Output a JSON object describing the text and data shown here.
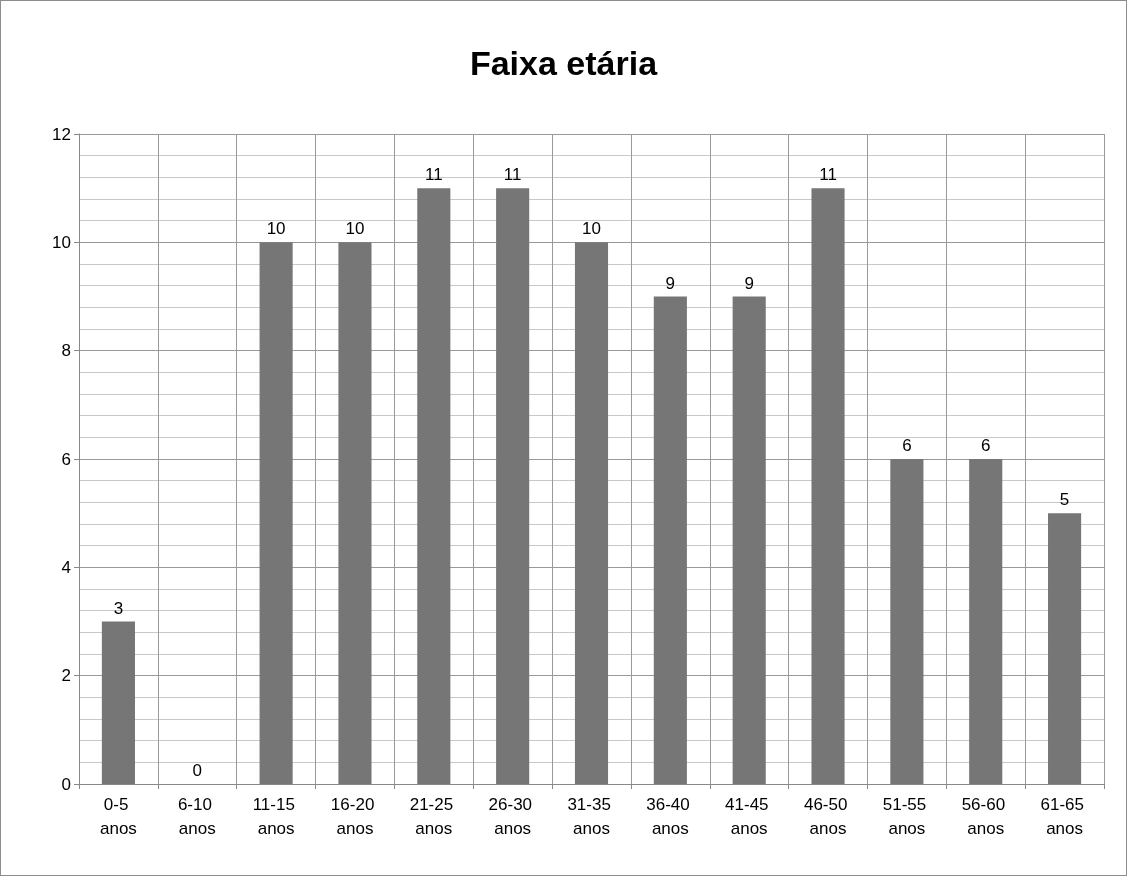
{
  "chart_data": {
    "type": "bar",
    "title": "Faixa etária",
    "categories": [
      "0-5 anos",
      "6-10 anos",
      "11-15 anos",
      "16-20 anos",
      "21-25 anos",
      "26-30 anos",
      "31-35 anos",
      "36-40 anos",
      "41-45 anos",
      "46-50 anos",
      "51-55 anos",
      "56-60 anos",
      "61-65 anos"
    ],
    "values": [
      3,
      0,
      10,
      10,
      11,
      11,
      10,
      9,
      9,
      11,
      6,
      6,
      5
    ],
    "color": "#767676",
    "ylim": [
      0,
      12
    ],
    "yticks": [
      0,
      2,
      4,
      6,
      8,
      10,
      12
    ],
    "grid": true,
    "data_labels": true
  }
}
